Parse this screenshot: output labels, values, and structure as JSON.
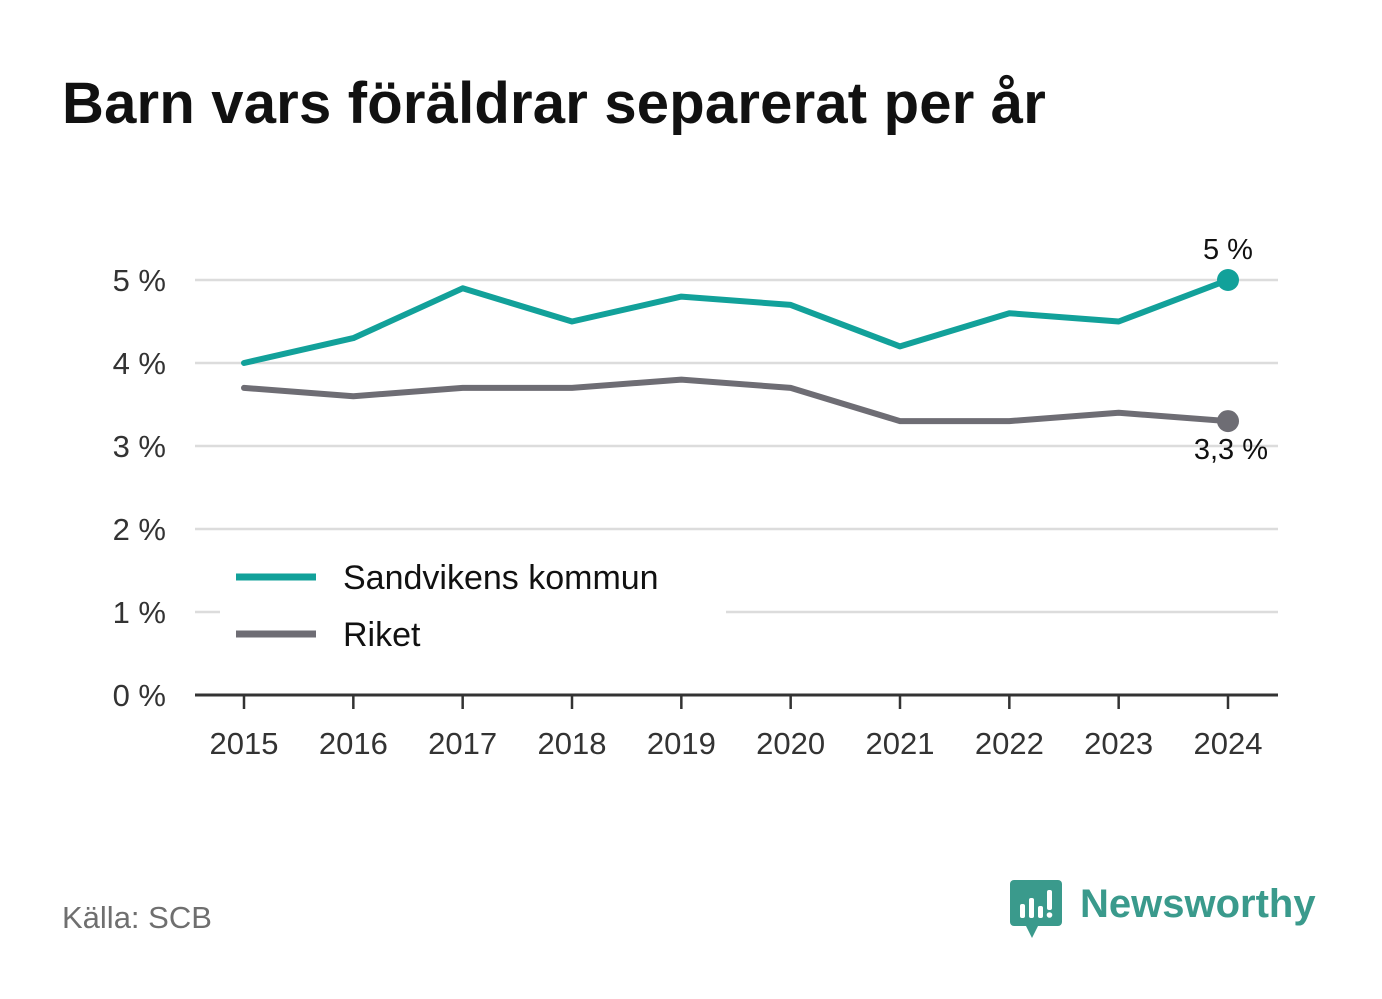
{
  "title": "Barn vars föräldrar separerat per år",
  "source": "Källa: SCB",
  "brand": {
    "name": "Newsworthy",
    "icon": "newsworthy-logo-icon",
    "color": "#3a9a8c"
  },
  "chart_data": {
    "type": "line",
    "categories": [
      "2015",
      "2016",
      "2017",
      "2018",
      "2019",
      "2020",
      "2021",
      "2022",
      "2023",
      "2024"
    ],
    "series": [
      {
        "name": "Sandvikens kommun",
        "color": "#12a19a",
        "values": [
          4.0,
          4.3,
          4.9,
          4.5,
          4.8,
          4.7,
          4.2,
          4.6,
          4.5,
          5.0
        ],
        "end_label": "5 %"
      },
      {
        "name": "Riket",
        "color": "#6e6d74",
        "values": [
          3.7,
          3.6,
          3.7,
          3.7,
          3.8,
          3.7,
          3.3,
          3.3,
          3.4,
          3.3
        ],
        "end_label": "3,3 %"
      }
    ],
    "yticks": [
      {
        "value": 0,
        "label": "0 %"
      },
      {
        "value": 1,
        "label": "1 %"
      },
      {
        "value": 2,
        "label": "2 %"
      },
      {
        "value": 3,
        "label": "3 %"
      },
      {
        "value": 4,
        "label": "4 %"
      },
      {
        "value": 5,
        "label": "5 %"
      }
    ],
    "ylim": [
      0,
      5
    ],
    "grid": true,
    "legend_position": "bottom-left"
  }
}
